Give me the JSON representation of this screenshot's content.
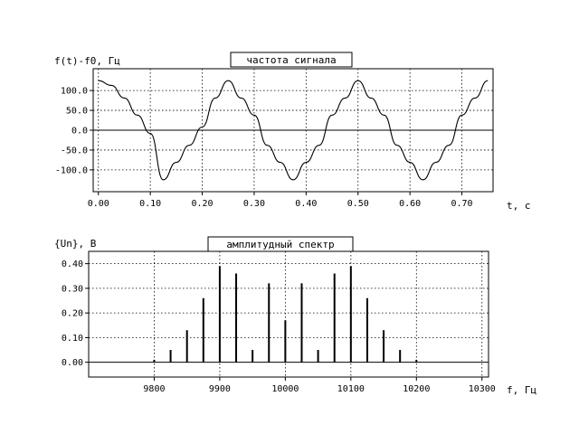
{
  "chart_data": [
    {
      "type": "line",
      "title": "частота сигнала",
      "xlabel": "t, c",
      "ylabel": "f(t)-f0, Гц",
      "xlim": [
        -0.01,
        0.76
      ],
      "ylim": [
        -155,
        155
      ],
      "xticks": [
        0.0,
        0.1,
        0.2,
        0.3,
        0.4,
        0.5,
        0.6,
        0.7
      ],
      "xtick_labels": [
        "0.00",
        "0.10",
        "0.20",
        "0.30",
        "0.40",
        "0.50",
        "0.60",
        "0.70"
      ],
      "yticks": [
        100,
        50,
        0,
        -50,
        -100
      ],
      "ytick_labels": [
        "100.0",
        "50.0",
        "0.0",
        "-50.0",
        "-100.0"
      ],
      "grid": true,
      "series": [
        {
          "x": [
            0,
            0.025,
            0.05,
            0.075,
            0.1,
            0.125,
            0.15,
            0.175,
            0.2,
            0.225,
            0.25,
            0.275,
            0.3,
            0.325,
            0.35,
            0.375,
            0.4,
            0.425,
            0.45,
            0.475,
            0.5,
            0.525,
            0.55,
            0.575,
            0.6,
            0.625,
            0.65,
            0.675,
            0.7,
            0.725,
            0.75
          ],
          "y": [
            125,
            113,
            81,
            38,
            -8,
            -125,
            -81,
            -38,
            8,
            81,
            125,
            81,
            38,
            -38,
            -81,
            -125,
            -81,
            -38,
            38,
            81,
            125,
            81,
            38,
            -38,
            -81,
            -125,
            -81,
            -38,
            38,
            81,
            125
          ]
        }
      ]
    },
    {
      "type": "bar",
      "title": "амплитудный спектр",
      "xlabel": "f, Гц",
      "ylabel": "{Un}, B",
      "xlim": [
        9700,
        10310
      ],
      "ylim": [
        -0.06,
        0.45
      ],
      "xticks": [
        9800,
        9900,
        10000,
        10100,
        10200,
        10300
      ],
      "xtick_labels": [
        "9800",
        "9900",
        "10000",
        "10100",
        "10200",
        "10300"
      ],
      "yticks": [
        0.4,
        0.3,
        0.2,
        0.1,
        0.0
      ],
      "ytick_labels": [
        "0.40",
        "0.30",
        "0.20",
        "0.10",
        "0.00"
      ],
      "grid": true,
      "x": [
        9800,
        9825,
        9850,
        9875,
        9900,
        9925,
        9950,
        9975,
        10000,
        10025,
        10050,
        10075,
        10100,
        10125,
        10150,
        10175,
        10200
      ],
      "values": [
        0.01,
        0.05,
        0.13,
        0.26,
        0.39,
        0.36,
        0.05,
        0.32,
        0.17,
        0.32,
        0.05,
        0.36,
        0.39,
        0.26,
        0.13,
        0.05,
        0.01
      ]
    }
  ]
}
